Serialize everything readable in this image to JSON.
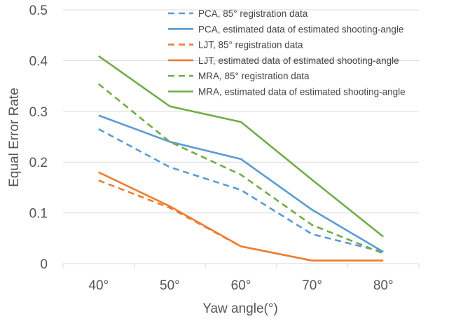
{
  "chart_data": {
    "type": "line",
    "title": "",
    "xlabel": "Yaw angle(°)",
    "ylabel": "Equal Error Rate",
    "categories": [
      "40°",
      "50°",
      "60°",
      "70°",
      "80°"
    ],
    "ylim": [
      0,
      0.5
    ],
    "yticks": [
      "0",
      "0.1",
      "0.2",
      "0.3",
      "0.4",
      "0.5"
    ],
    "grid": "horizontal",
    "legend_position": "top-right",
    "series": [
      {
        "name": "PCA,  85° registration data",
        "color": "#5b9bd5",
        "dash": true,
        "values": [
          0.265,
          0.19,
          0.145,
          0.058,
          0.023
        ]
      },
      {
        "name": "PCA, estimated data of estimated shooting-angle",
        "color": "#5b9bd5",
        "dash": false,
        "values": [
          0.292,
          0.24,
          0.206,
          0.106,
          0.023
        ]
      },
      {
        "name": "LJT,  85° registration data",
        "color": "#ed7d31",
        "dash": true,
        "values": [
          0.164,
          0.11,
          0.034,
          0.006,
          0.006
        ]
      },
      {
        "name": "LJT, estimated data of estimated shooting-angle",
        "color": "#ed7d31",
        "dash": false,
        "values": [
          0.18,
          0.113,
          0.034,
          0.006,
          0.006
        ]
      },
      {
        "name": "MRA,  85° registration data",
        "color": "#70ad47",
        "dash": true,
        "values": [
          0.354,
          0.24,
          0.175,
          0.076,
          0.02
        ]
      },
      {
        "name": "MRA, estimated data of estimated shooting-angle",
        "color": "#70ad47",
        "dash": false,
        "values": [
          0.409,
          0.31,
          0.279,
          0.165,
          0.053
        ]
      }
    ]
  }
}
